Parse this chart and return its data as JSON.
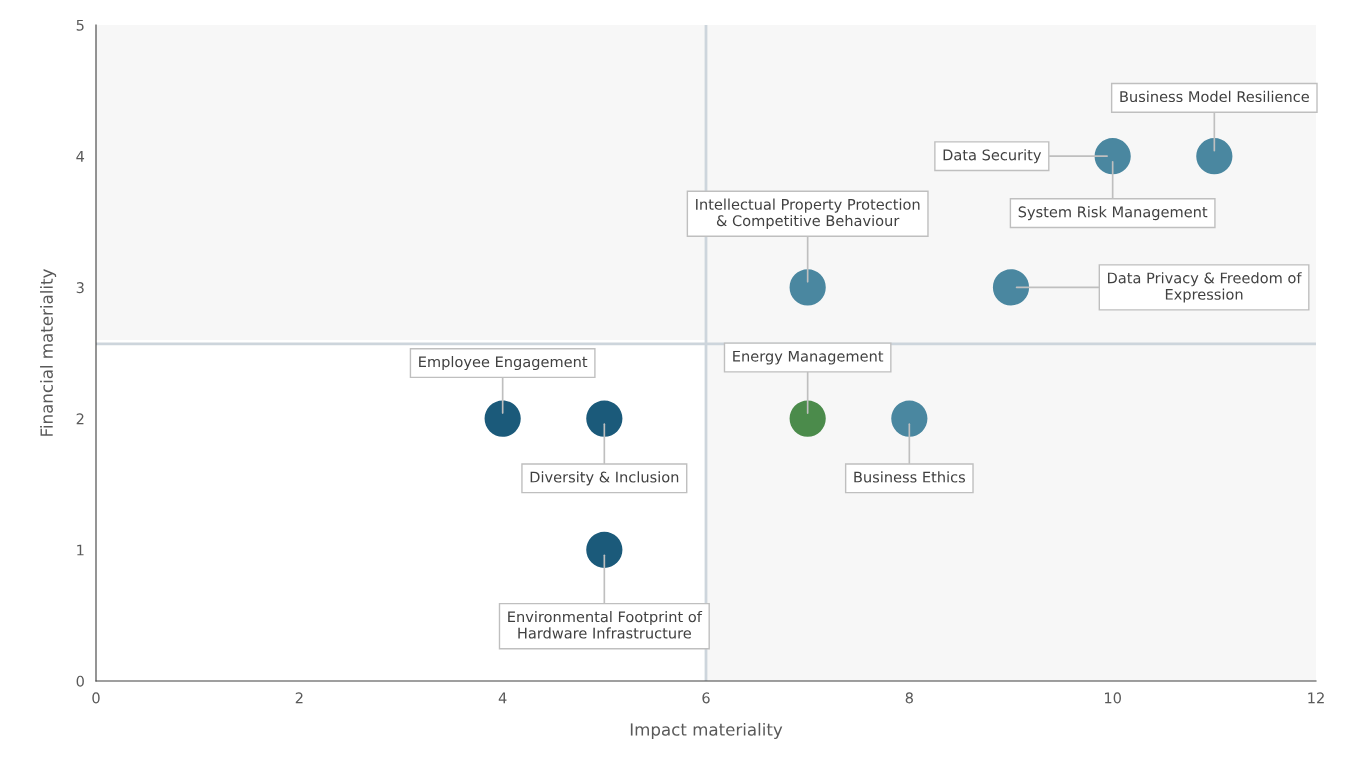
{
  "chart_data": {
    "type": "scatter",
    "xlabel": "Impact materiality",
    "ylabel": "Financial materiality",
    "x": [
      4,
      5,
      5,
      7,
      8,
      7,
      9,
      10,
      11
    ],
    "values": [
      2,
      2,
      1,
      2,
      2,
      3,
      3,
      4,
      4
    ],
    "colors": [
      "#1b5a7a",
      "#1b5a7a",
      "#1b5a7a",
      "#4b8b4b",
      "#4a87a0",
      "#4a87a0",
      "#4a87a0",
      "#4a87a0",
      "#4a87a0"
    ],
    "marker": "circle",
    "grid": false,
    "xlim": [
      0,
      12
    ],
    "xticks": [
      0,
      2,
      4,
      6,
      8,
      10,
      12
    ],
    "ylim": [
      0,
      5
    ],
    "yticks": [
      0,
      1,
      2,
      3,
      4,
      5
    ],
    "ref_lines": [
      {
        "axis": "x",
        "value": 6,
        "color": "#cdd5dc"
      },
      {
        "axis": "y",
        "value": 2.57,
        "color": "#cdd5dc"
      }
    ],
    "bands": [
      {
        "axis": "y",
        "from": 2.6,
        "to": 5,
        "color": "#f7f7f7"
      },
      {
        "axis": "x",
        "from": 6,
        "to": 12,
        "color": "#f7f7f7"
      }
    ],
    "annotations": [
      {
        "text": "Employee Engagement",
        "x": 4,
        "y": 2
      },
      {
        "text": "Diversity & Inclusion",
        "x": 5,
        "y": 2
      },
      {
        "text": "Environmental Footprint of\nHardware Infrastructure",
        "x": 5,
        "y": 1
      },
      {
        "text": "Energy Management",
        "x": 7,
        "y": 2
      },
      {
        "text": "Business Ethics",
        "x": 8,
        "y": 2
      },
      {
        "text": "Intellectual Property Protection\n& Competitive Behaviour",
        "x": 7,
        "y": 3
      },
      {
        "text": "Data Privacy & Freedom of\nExpression",
        "x": 9,
        "y": 3
      },
      {
        "text": "Data Security",
        "x": 10,
        "y": 4
      },
      {
        "text": "System Risk Management",
        "x": 10,
        "y": 4
      },
      {
        "text": "Business Model Resilience",
        "x": 11,
        "y": 4
      }
    ]
  }
}
